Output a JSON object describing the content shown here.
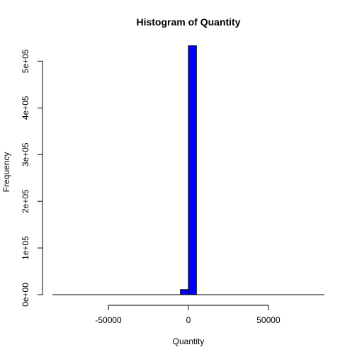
{
  "chart_data": {
    "type": "bar",
    "title": "Histogram of Quantity",
    "xlabel": "Quantity",
    "ylabel": "Frequency",
    "xlim": [
      -85000,
      85000
    ],
    "ylim": [
      0,
      540000
    ],
    "x_ticks": [
      {
        "value": -50000,
        "label": "-50000"
      },
      {
        "value": 0,
        "label": "0"
      },
      {
        "value": 50000,
        "label": "50000"
      }
    ],
    "y_ticks": [
      {
        "value": 0,
        "label": "0e+00"
      },
      {
        "value": 100000,
        "label": "1e+05"
      },
      {
        "value": 200000,
        "label": "2e+05"
      },
      {
        "value": 300000,
        "label": "3e+05"
      },
      {
        "value": 400000,
        "label": "4e+05"
      },
      {
        "value": 500000,
        "label": "5e+05"
      }
    ],
    "bins": [
      {
        "start": -5000,
        "end": 0,
        "count": 11000
      },
      {
        "start": 0,
        "end": 5000,
        "count": 533000
      }
    ],
    "bar_color": "#0000ff",
    "bar_border_color": "#000000",
    "grid": false,
    "legend": "none"
  }
}
